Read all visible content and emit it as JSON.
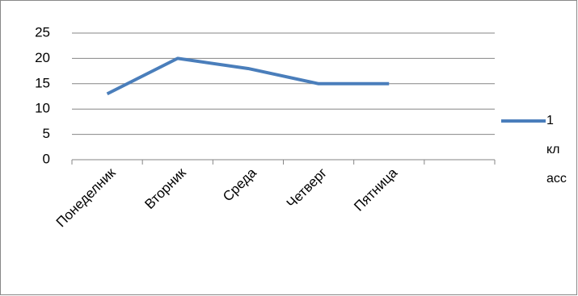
{
  "chart_data": {
    "type": "line",
    "categories": [
      "Понеделник",
      "Вторник",
      "Среда",
      "Четверг",
      "Пятница",
      null
    ],
    "series": [
      {
        "name": "1 класс",
        "color": "#4a7ebb",
        "values": [
          13,
          20,
          18,
          15,
          15,
          null
        ]
      }
    ],
    "ylim": [
      0,
      25
    ],
    "yticks": [
      0,
      5,
      10,
      15,
      20,
      25
    ],
    "grid": true,
    "legend": "right"
  }
}
